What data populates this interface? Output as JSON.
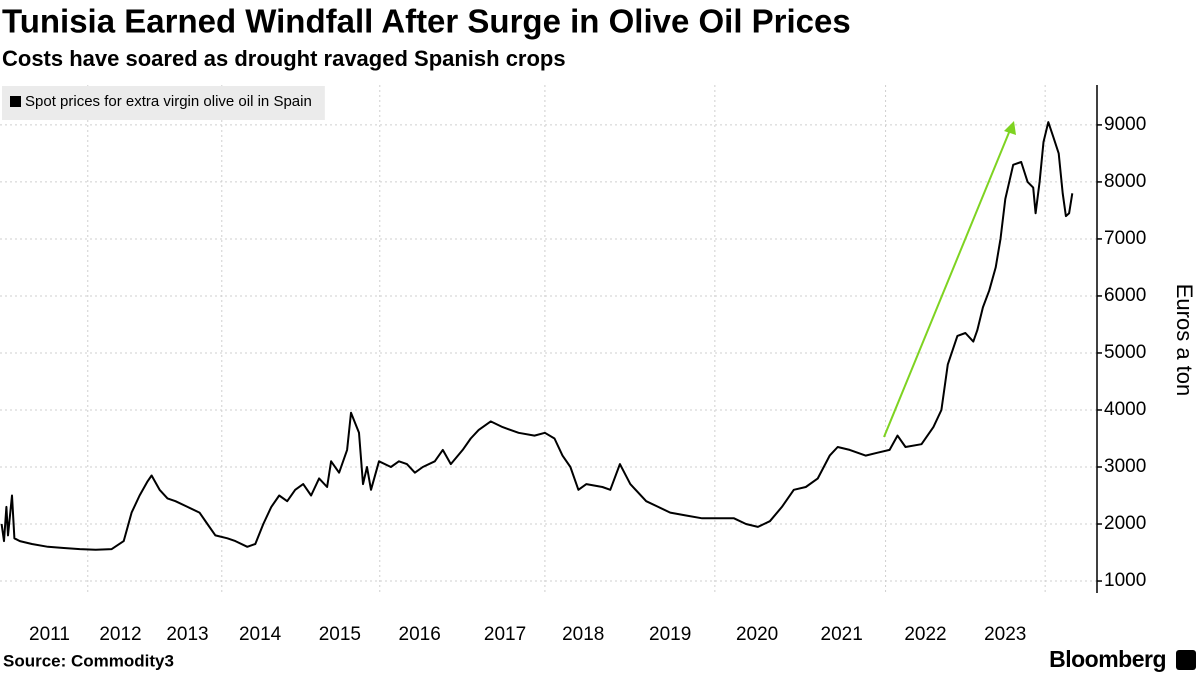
{
  "chart_data": {
    "type": "line",
    "title": "Tunisia Earned Windfall After Surge in Olive Oil Prices",
    "subtitle": "Costs have soared as drought ravaged Spanish crops",
    "y_label": "Euros a ton",
    "source": "Source: Commodity3",
    "brand": "Bloomberg",
    "x": [
      2010.92,
      2010.95,
      2010.98,
      2011.0,
      2011.05,
      2011.08,
      2011.15,
      2011.3,
      2011.5,
      2011.7,
      2011.9,
      2012.1,
      2012.3,
      2012.45,
      2012.55,
      2012.65,
      2012.75,
      2012.8,
      2012.9,
      2013.0,
      2013.1,
      2013.25,
      2013.4,
      2013.5,
      2013.6,
      2013.75,
      2013.85,
      2014.0,
      2014.1,
      2014.2,
      2014.3,
      2014.4,
      2014.5,
      2014.6,
      2014.7,
      2014.8,
      2014.9,
      2015.0,
      2015.05,
      2015.15,
      2015.25,
      2015.3,
      2015.4,
      2015.45,
      2015.5,
      2015.55,
      2015.65,
      2015.8,
      2015.9,
      2016.0,
      2016.1,
      2016.2,
      2016.35,
      2016.45,
      2016.55,
      2016.7,
      2016.8,
      2016.9,
      2017.05,
      2017.2,
      2017.4,
      2017.6,
      2017.73,
      2017.85,
      2017.95,
      2018.05,
      2018.15,
      2018.25,
      2018.45,
      2018.55,
      2018.67,
      2018.8,
      2019.0,
      2019.15,
      2019.3,
      2019.5,
      2019.7,
      2019.9,
      2020.1,
      2020.25,
      2020.4,
      2020.55,
      2020.7,
      2020.85,
      2021.0,
      2021.15,
      2021.3,
      2021.4,
      2021.55,
      2021.75,
      2021.9,
      2022.05,
      2022.15,
      2022.25,
      2022.45,
      2022.6,
      2022.7,
      2022.78,
      2022.9,
      2023.0,
      2023.1,
      2023.15,
      2023.22,
      2023.3,
      2023.38,
      2023.44,
      2023.5,
      2023.6,
      2023.7,
      2023.78,
      2023.85,
      2023.88,
      2023.93,
      2023.98,
      2024.04,
      2024.1,
      2024.17,
      2024.22,
      2024.26,
      2024.3,
      2024.34
    ],
    "series": [
      {
        "name": "Spot prices for extra virgin olive oil in Spain",
        "color": "#000000",
        "values": [
          2000,
          1700,
          2300,
          1800,
          2500,
          1750,
          1700,
          1650,
          1600,
          1580,
          1560,
          1550,
          1560,
          1700,
          2200,
          2500,
          2750,
          2850,
          2600,
          2450,
          2400,
          2300,
          2200,
          2000,
          1800,
          1750,
          1700,
          1600,
          1650,
          2000,
          2300,
          2500,
          2400,
          2600,
          2700,
          2500,
          2800,
          2650,
          3100,
          2900,
          3300,
          3950,
          3600,
          2700,
          3000,
          2600,
          3100,
          3000,
          3100,
          3050,
          2900,
          3000,
          3100,
          3300,
          3050,
          3300,
          3500,
          3650,
          3800,
          3700,
          3600,
          3550,
          3600,
          3500,
          3200,
          3000,
          2600,
          2700,
          2650,
          2600,
          3050,
          2700,
          2400,
          2300,
          2200,
          2150,
          2100,
          2100,
          2100,
          2000,
          1950,
          2050,
          2300,
          2600,
          2650,
          2800,
          3200,
          3350,
          3300,
          3200,
          3250,
          3300,
          3550,
          3350,
          3400,
          3700,
          4000,
          4800,
          5300,
          5350,
          5200,
          5400,
          5800,
          6100,
          6500,
          7000,
          7700,
          8300,
          8350,
          8000,
          7900,
          7450,
          8000,
          8700,
          9050,
          8800,
          8500,
          7800,
          7400,
          7450,
          7800
        ]
      }
    ],
    "xlim": [
      2010.9,
      2024.65
    ],
    "xticks": [
      {
        "value": 2011.52,
        "label": "2011"
      },
      {
        "value": 2012.41,
        "label": "2012"
      },
      {
        "value": 2013.25,
        "label": "2013"
      },
      {
        "value": 2014.16,
        "label": "2014"
      },
      {
        "value": 2015.16,
        "label": "2015"
      },
      {
        "value": 2016.16,
        "label": "2016"
      },
      {
        "value": 2017.23,
        "label": "2017"
      },
      {
        "value": 2018.21,
        "label": "2018"
      },
      {
        "value": 2019.3,
        "label": "2019"
      },
      {
        "value": 2020.39,
        "label": "2020"
      },
      {
        "value": 2021.45,
        "label": "2021"
      },
      {
        "value": 2022.5,
        "label": "2022"
      },
      {
        "value": 2023.5,
        "label": "2023"
      }
    ],
    "xgrid": [
      2012,
      2013.68,
      2015.66,
      2017.73,
      2019.86,
      2022,
      2024
    ],
    "ylim": [
      790,
      9700
    ],
    "yticks": [
      1000,
      2000,
      3000,
      4000,
      5000,
      6000,
      7000,
      8000,
      9000
    ],
    "grid": true,
    "legend": "top-left"
  }
}
